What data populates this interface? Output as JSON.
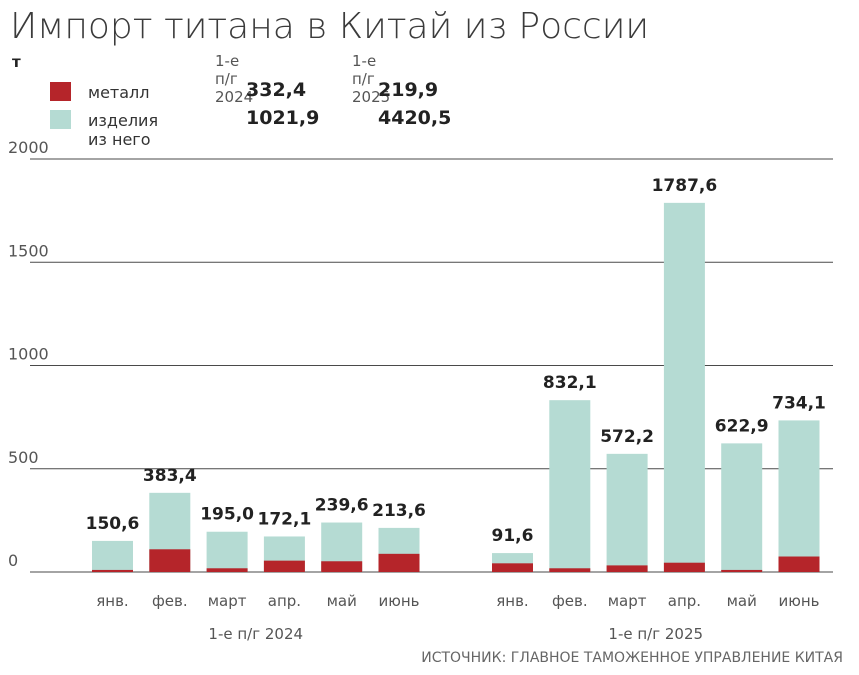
{
  "title": "Импорт титана в Китай из России",
  "unit": "т",
  "legend": {
    "periods": [
      "1-е п/г 2024",
      "1-е п/г 2025"
    ],
    "items": [
      {
        "label": "металл",
        "color": "#b5252a",
        "values": [
          "332,4",
          "219,9"
        ]
      },
      {
        "label": "изделия из него",
        "color": "#b5dbd3",
        "values": [
          "1021,9",
          "4420,5"
        ]
      }
    ]
  },
  "source": "ИСТОЧНИК: ГЛАВНОЕ ТАМОЖЕННОЕ УПРАВЛЕНИЕ КИТАЯ",
  "chart_data": {
    "type": "bar",
    "stacked": true,
    "ylim": [
      0,
      2000
    ],
    "yticks": [
      0,
      500,
      1000,
      1500,
      2000
    ],
    "groups": [
      {
        "name": "1-е п/г 2024",
        "categories": [
          "янв.",
          "фев.",
          "март",
          "апр.",
          "май",
          "июнь"
        ],
        "totals": [
          150.6,
          383.4,
          195.0,
          172.1,
          239.6,
          213.6
        ],
        "total_labels": [
          "150,6",
          "383,4",
          "195,0",
          "172,1",
          "239,6",
          "213,6"
        ],
        "metal": [
          10,
          110,
          18,
          55,
          52,
          88
        ]
      },
      {
        "name": "1-е п/г 2025",
        "categories": [
          "янв.",
          "фев.",
          "март",
          "апр.",
          "май",
          "июнь"
        ],
        "totals": [
          91.6,
          832.1,
          572.2,
          1787.6,
          622.9,
          734.1
        ],
        "total_labels": [
          "91,6",
          "832,1",
          "572,2",
          "1787,6",
          "622,9",
          "734,1"
        ],
        "metal": [
          42,
          18,
          32,
          45,
          10,
          75
        ]
      }
    ],
    "series": [
      {
        "name": "металл",
        "color": "#b5252a"
      },
      {
        "name": "изделия из него",
        "color": "#b5dbd3"
      }
    ],
    "gridline_color": "#4a4a4a"
  }
}
